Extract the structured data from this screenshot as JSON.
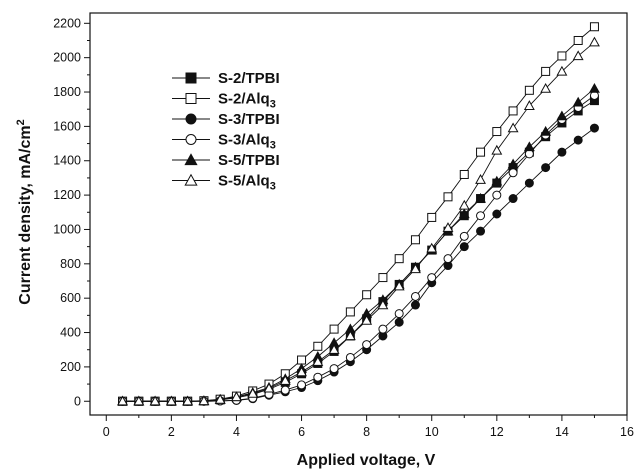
{
  "chart_data": {
    "type": "line",
    "title": "",
    "xlabel": "Applied voltage, V",
    "ylabel": "Current density, mA/cm",
    "ylabel_sup": "2",
    "xlim": [
      -0.5,
      16
    ],
    "ylim": [
      -80,
      2260
    ],
    "xticks": [
      0,
      2,
      4,
      6,
      8,
      10,
      12,
      14,
      16
    ],
    "yticks": [
      0,
      200,
      400,
      600,
      800,
      1000,
      1200,
      1400,
      1600,
      1800,
      2000,
      2200
    ],
    "grid": false,
    "legend_position": "top-left",
    "x": [
      0.5,
      1,
      1.5,
      2,
      2.5,
      3,
      3.5,
      4,
      4.5,
      5,
      5.5,
      6,
      6.5,
      7,
      7.5,
      8,
      8.5,
      9,
      9.5,
      10,
      10.5,
      11,
      11.5,
      12,
      12.5,
      13,
      13.5,
      14,
      14.5,
      15
    ],
    "series": [
      {
        "name": "S-2/TPBI",
        "marker": "square",
        "filled": true,
        "values": [
          0,
          0,
          0,
          0,
          0,
          2,
          8,
          20,
          40,
          70,
          110,
          160,
          220,
          290,
          380,
          480,
          580,
          680,
          780,
          880,
          990,
          1080,
          1180,
          1270,
          1360,
          1450,
          1540,
          1620,
          1690,
          1750
        ]
      },
      {
        "name": "S-2/Alq3",
        "marker": "square",
        "filled": false,
        "values": [
          0,
          0,
          0,
          0,
          0,
          3,
          12,
          30,
          60,
          100,
          160,
          240,
          320,
          420,
          520,
          620,
          720,
          830,
          940,
          1070,
          1190,
          1320,
          1450,
          1570,
          1690,
          1810,
          1920,
          2010,
          2100,
          2180
        ]
      },
      {
        "name": "S-3/TPBI",
        "marker": "circle",
        "filled": true,
        "values": [
          0,
          0,
          0,
          0,
          0,
          0,
          2,
          5,
          15,
          35,
          55,
          80,
          120,
          170,
          230,
          300,
          380,
          460,
          560,
          690,
          790,
          900,
          990,
          1090,
          1180,
          1270,
          1360,
          1450,
          1520,
          1590
        ]
      },
      {
        "name": "S-3/Alq3",
        "marker": "circle",
        "filled": false,
        "values": [
          0,
          0,
          0,
          0,
          0,
          0,
          2,
          6,
          18,
          40,
          65,
          95,
          140,
          190,
          255,
          330,
          420,
          510,
          610,
          720,
          830,
          960,
          1080,
          1200,
          1330,
          1440,
          1550,
          1640,
          1710,
          1780
        ]
      },
      {
        "name": "S-5/TPBI",
        "marker": "triangle",
        "filled": true,
        "values": [
          0,
          0,
          0,
          0,
          0,
          2,
          10,
          25,
          50,
          80,
          130,
          190,
          260,
          340,
          420,
          510,
          590,
          680,
          780,
          880,
          990,
          1090,
          1180,
          1280,
          1380,
          1480,
          1570,
          1660,
          1740,
          1820
        ]
      },
      {
        "name": "S-5/Alq3",
        "marker": "triangle",
        "filled": false,
        "values": [
          0,
          0,
          0,
          0,
          0,
          2,
          10,
          25,
          45,
          75,
          120,
          170,
          230,
          300,
          380,
          470,
          560,
          670,
          770,
          890,
          1010,
          1140,
          1290,
          1460,
          1590,
          1720,
          1820,
          1920,
          2010,
          2090
        ]
      }
    ]
  }
}
